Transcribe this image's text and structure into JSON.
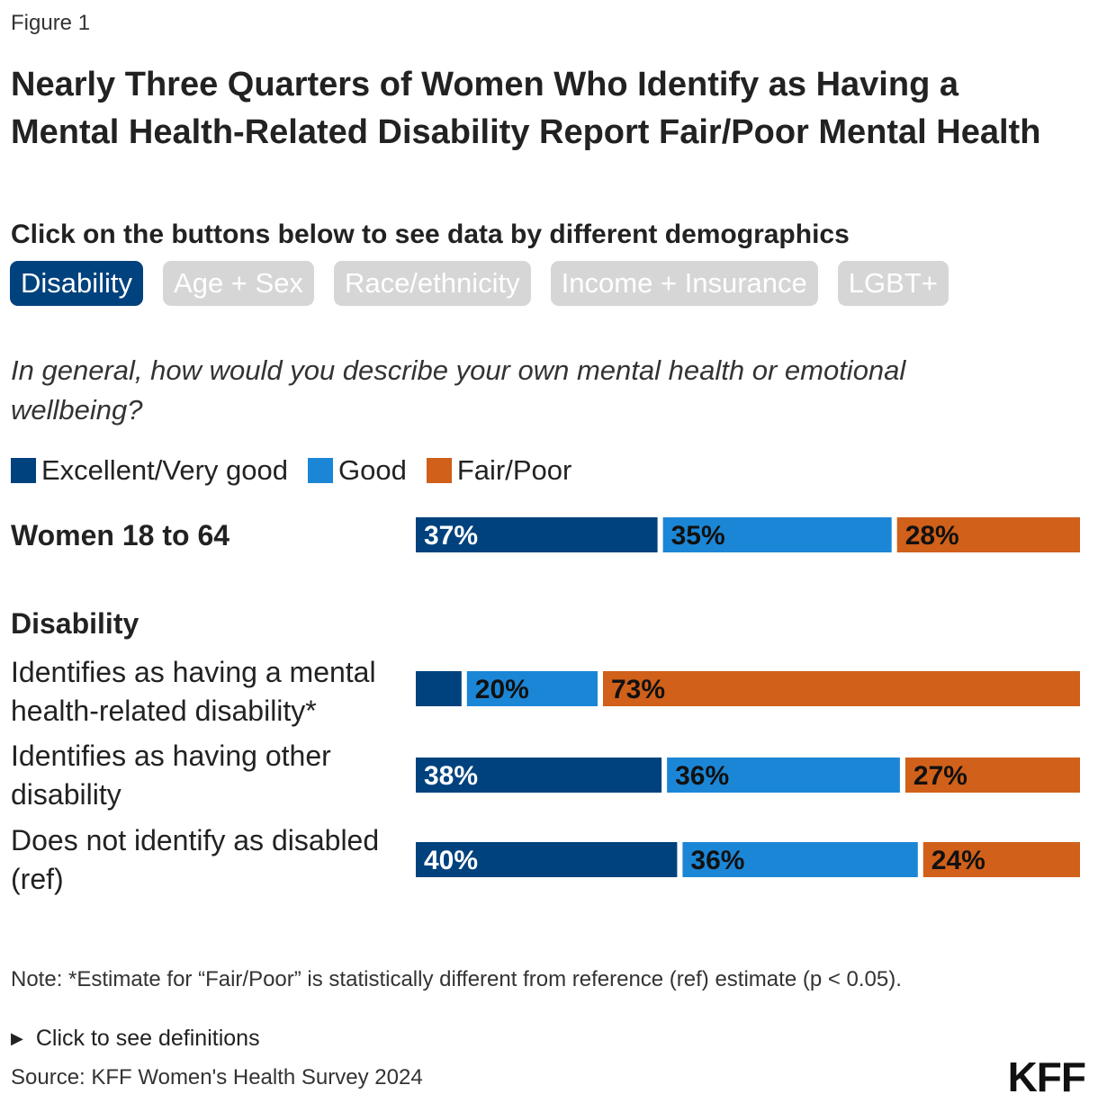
{
  "figure_label": "Figure 1",
  "title": "Nearly Three Quarters of Women Who Identify as Having a Mental Health-Related Disability Report Fair/Poor Mental Health",
  "subtitle": "Click on the buttons below to see data by different demographics",
  "buttons": [
    {
      "label": "Disability",
      "active": true
    },
    {
      "label": "Age + Sex",
      "active": false
    },
    {
      "label": "Race/ethnicity",
      "active": false
    },
    {
      "label": "Income + Insurance",
      "active": false
    },
    {
      "label": "LGBT+",
      "active": false
    }
  ],
  "question": "In general, how would you describe your own mental health or emotional wellbeing?",
  "section_label": "Disability",
  "note": "Note: *Estimate for “Fair/Poor” is statistically different from reference (ref) estimate (p < 0.05).",
  "definitions_toggle": "Click to see definitions",
  "source": "Source: KFF Women's Health Survey 2024",
  "logo": "KFF",
  "colors": {
    "excellent": "#00427d",
    "good": "#1c86d6",
    "fair_poor": "#d0601a",
    "button_active": "#00427d",
    "button_inactive": "#d6d6d6"
  },
  "chart_data": {
    "type": "bar",
    "orientation": "horizontal",
    "stacked": true,
    "series": [
      {
        "name": "Excellent/Very good",
        "color": "#00427d"
      },
      {
        "name": "Good",
        "color": "#1c86d6"
      },
      {
        "name": "Fair/Poor",
        "color": "#d0601a"
      }
    ],
    "rows": [
      {
        "label": "Women 18 to 64",
        "values": [
          37,
          35,
          28
        ],
        "labels": [
          "37%",
          "35%",
          "28%"
        ]
      },
      {
        "label": "Identifies as having a mental health-related disability*",
        "values": [
          7,
          20,
          73
        ],
        "labels": [
          "",
          "20%",
          "73%"
        ]
      },
      {
        "label": "Identifies as having other disability",
        "values": [
          38,
          36,
          27
        ],
        "labels": [
          "38%",
          "36%",
          "27%"
        ]
      },
      {
        "label": "Does not identify as disabled (ref)",
        "values": [
          40,
          36,
          24
        ],
        "labels": [
          "40%",
          "36%",
          "24%"
        ]
      }
    ],
    "xlim": [
      0,
      100
    ]
  }
}
